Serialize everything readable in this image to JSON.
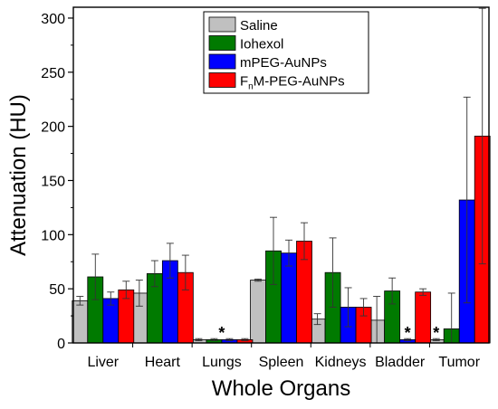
{
  "chart_data": {
    "type": "bar",
    "xlabel": "Whole Organs",
    "ylabel": "Attenuation (HU)",
    "ylim": [
      0,
      310
    ],
    "yticks": [
      0,
      50,
      100,
      150,
      200,
      250,
      300
    ],
    "categories": [
      "Liver",
      "Heart",
      "Lungs",
      "Spleen",
      "Kidneys",
      "Bladder",
      "Tumor"
    ],
    "series": [
      {
        "name": "Saline",
        "color": "#c0c0c0",
        "values": [
          39,
          46,
          3,
          58,
          22,
          21,
          3
        ],
        "errors": [
          4,
          12,
          1,
          1,
          5,
          22,
          1
        ]
      },
      {
        "name": "Iohexol",
        "color": "#007a00",
        "values": [
          61,
          64,
          3,
          85,
          65,
          48,
          13
        ],
        "errors": [
          21,
          12,
          1,
          31,
          32,
          12,
          33
        ]
      },
      {
        "name": "mPEG-AuNPs",
        "color": "#0000ff",
        "values": [
          41,
          76,
          3,
          83,
          33,
          3,
          132
        ],
        "errors": [
          6,
          16,
          1,
          12,
          18,
          1,
          95
        ]
      },
      {
        "name": "FnM-PEG-AuNPs",
        "color": "#ff0000",
        "values": [
          49,
          65,
          3,
          94,
          33,
          47,
          191
        ],
        "errors": [
          8,
          16,
          1,
          17,
          8,
          3,
          118
        ]
      }
    ],
    "legend": {
      "position": "top-center",
      "entries": [
        {
          "main": "Saline",
          "sub": "",
          "rest": ""
        },
        {
          "main": "Iohexol",
          "sub": "",
          "rest": ""
        },
        {
          "main": "mPEG-AuNPs",
          "sub": "",
          "rest": ""
        },
        {
          "main": "F",
          "sub": "n",
          "rest": "M-PEG-AuNPs"
        }
      ]
    },
    "annotations": [
      {
        "text": "*",
        "category": "Lungs",
        "value": 6
      },
      {
        "text": "*",
        "category": "Bladder",
        "value": 6
      },
      {
        "text": "*",
        "category": "Tumor",
        "value": 6
      }
    ],
    "grid": false
  }
}
